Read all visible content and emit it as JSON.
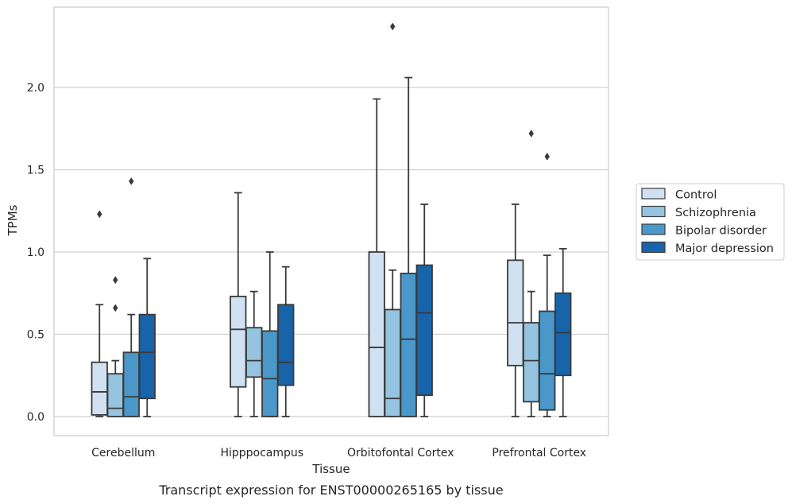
{
  "caption": "Transcript expression for ENST00000265165 by tissue",
  "chart_data": {
    "type": "boxplot",
    "xlabel": "Tissue",
    "ylabel": "TPMs",
    "ylim": [
      -0.12,
      2.5
    ],
    "yticks": [
      0.0,
      0.5,
      1.0,
      1.5,
      2.0
    ],
    "ytick_labels": [
      "0.0",
      "0.5",
      "1.0",
      "1.5",
      "2.0"
    ],
    "grid": "horizontal",
    "legend_position": "right",
    "categories": [
      "Cerebellum",
      "Hipppocampus",
      "Orbitofontal Cortex",
      "Prefrontal Cortex"
    ],
    "series": [
      {
        "name": "Control",
        "color": "#d0e1f2",
        "boxes": [
          {
            "whislo": 0.0,
            "q1": 0.01,
            "med": 0.15,
            "q3": 0.33,
            "whishi": 0.68,
            "fliers": [
              1.23
            ]
          },
          {
            "whislo": 0.0,
            "q1": 0.18,
            "med": 0.53,
            "q3": 0.73,
            "whishi": 1.36,
            "fliers": []
          },
          {
            "whislo": 0.0,
            "q1": 0.0,
            "med": 0.42,
            "q3": 1.0,
            "whishi": 1.93,
            "fliers": []
          },
          {
            "whislo": 0.0,
            "q1": 0.31,
            "med": 0.57,
            "q3": 0.95,
            "whishi": 1.29,
            "fliers": []
          }
        ]
      },
      {
        "name": "Schizophrenia",
        "color": "#94c4df",
        "boxes": [
          {
            "whislo": 0.0,
            "q1": 0.0,
            "med": 0.05,
            "q3": 0.26,
            "whishi": 0.34,
            "fliers": [
              0.66,
              0.83
            ]
          },
          {
            "whislo": 0.0,
            "q1": 0.24,
            "med": 0.34,
            "q3": 0.54,
            "whishi": 0.76,
            "fliers": []
          },
          {
            "whislo": 0.0,
            "q1": 0.0,
            "med": 0.11,
            "q3": 0.65,
            "whishi": 0.89,
            "fliers": [
              2.37
            ]
          },
          {
            "whislo": 0.0,
            "q1": 0.09,
            "med": 0.34,
            "q3": 0.57,
            "whishi": 0.76,
            "fliers": [
              1.72
            ]
          }
        ]
      },
      {
        "name": "Bipolar disorder",
        "color": "#4a98c9",
        "boxes": [
          {
            "whislo": 0.0,
            "q1": 0.0,
            "med": 0.12,
            "q3": 0.39,
            "whishi": 0.62,
            "fliers": [
              1.43
            ]
          },
          {
            "whislo": 0.0,
            "q1": 0.0,
            "med": 0.23,
            "q3": 0.52,
            "whishi": 1.0,
            "fliers": []
          },
          {
            "whislo": 0.0,
            "q1": 0.0,
            "med": 0.47,
            "q3": 0.87,
            "whishi": 2.06,
            "fliers": []
          },
          {
            "whislo": 0.0,
            "q1": 0.04,
            "med": 0.26,
            "q3": 0.64,
            "whishi": 0.98,
            "fliers": [
              1.58
            ]
          }
        ]
      },
      {
        "name": "Major depression",
        "color": "#1764ab",
        "boxes": [
          {
            "whislo": 0.0,
            "q1": 0.11,
            "med": 0.39,
            "q3": 0.62,
            "whishi": 0.96,
            "fliers": []
          },
          {
            "whislo": 0.0,
            "q1": 0.19,
            "med": 0.33,
            "q3": 0.68,
            "whishi": 0.91,
            "fliers": []
          },
          {
            "whislo": 0.0,
            "q1": 0.13,
            "med": 0.63,
            "q3": 0.92,
            "whishi": 1.29,
            "fliers": []
          },
          {
            "whislo": 0.0,
            "q1": 0.25,
            "med": 0.51,
            "q3": 0.75,
            "whishi": 1.02,
            "fliers": []
          }
        ]
      }
    ]
  }
}
